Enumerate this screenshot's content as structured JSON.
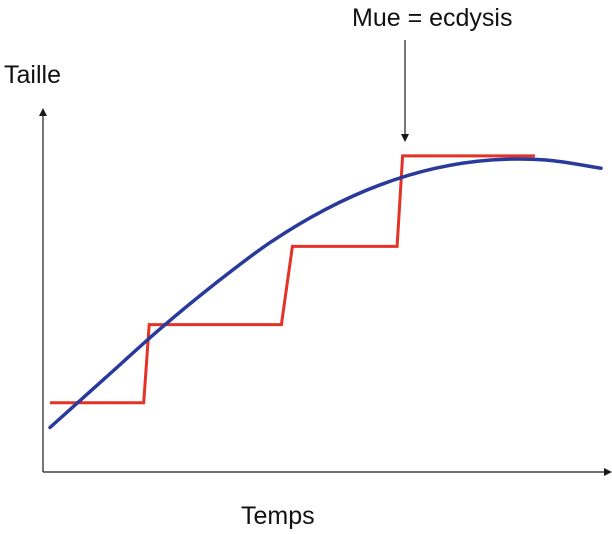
{
  "chart_data": {
    "type": "line",
    "ylabel": "Taille",
    "xlabel": "Temps",
    "annotation": "Mue = ecdysis",
    "grid": false,
    "ticks": false,
    "series": [
      {
        "color": "#e53226",
        "shape": "step",
        "x": [
          0,
          17,
          18,
          42,
          44,
          63,
          64,
          88
        ],
        "y": [
          10,
          10,
          29,
          29,
          48,
          48,
          70,
          70
        ]
      },
      {
        "color": "#2a3a9a",
        "shape": "smooth",
        "x": [
          0,
          10,
          20,
          30,
          40,
          50,
          60,
          70,
          80,
          90,
          100
        ],
        "y": [
          4,
          16,
          28,
          39,
          49,
          57,
          63,
          67,
          69,
          69,
          67
        ]
      }
    ]
  },
  "colors": {
    "axis": "#1a1a1a",
    "text": "#111111"
  }
}
